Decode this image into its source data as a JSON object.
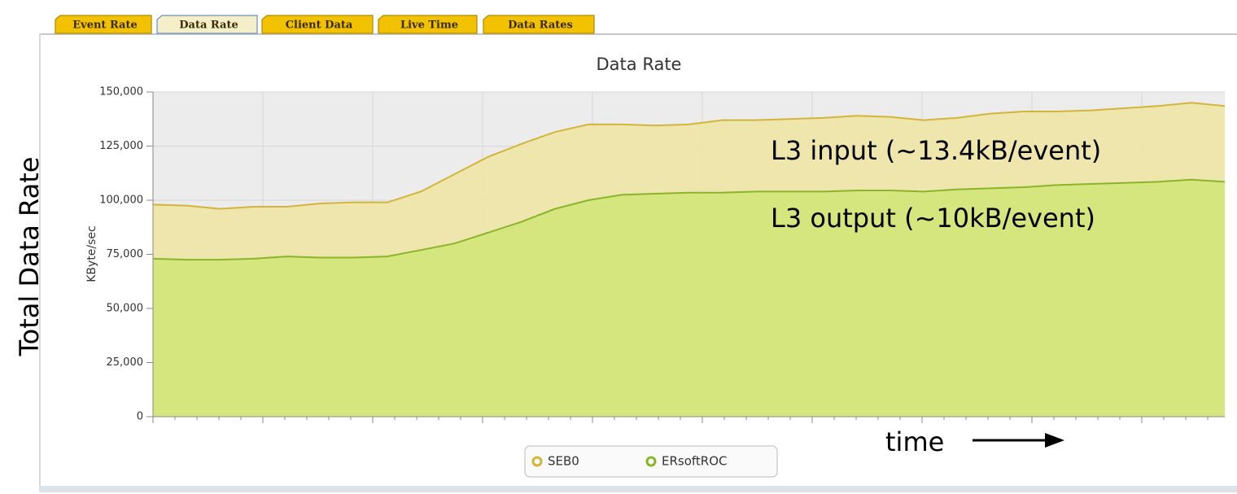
{
  "tabs": [
    "Event Rate",
    "Data Rate",
    "Client Data",
    "Live Time",
    "Data Rates"
  ],
  "side_label": "Total Data Rate",
  "chart_data": {
    "type": "area",
    "title": "Data Rate",
    "y_label": "KByte/sec",
    "categories": [
      null,
      null,
      null,
      null,
      null,
      null,
      null,
      null,
      null,
      null,
      null,
      null,
      null,
      null,
      null,
      null,
      null,
      null,
      null,
      null,
      null,
      null,
      null,
      null,
      null,
      null,
      null,
      null,
      null,
      null,
      null,
      null,
      null
    ],
    "series": [
      {
        "name": "SEB0",
        "color": "#d2b53a",
        "fill": "#efe6a6",
        "values": [
          98000,
          97500,
          96000,
          97000,
          97000,
          98500,
          99000,
          99000,
          104000,
          112000,
          120000,
          126000,
          131500,
          135000,
          135000,
          134500,
          135000,
          137000,
          137000,
          137500,
          138000,
          139000,
          138500,
          137000,
          138000,
          140000,
          141000,
          141000,
          141500,
          142500,
          143500,
          145000,
          143500
        ]
      },
      {
        "name": "ERsoftROC",
        "color": "#89b52a",
        "fill": "#d3e67a",
        "values": [
          73000,
          72500,
          72500,
          73000,
          74000,
          73500,
          73500,
          74000,
          77000,
          80000,
          85000,
          90000,
          96000,
          100000,
          102500,
          103000,
          103500,
          103500,
          104000,
          104000,
          104000,
          104500,
          104500,
          104000,
          105000,
          105500,
          106000,
          107000,
          107500,
          108000,
          108500,
          109500,
          108500
        ]
      }
    ],
    "ylim": [
      0,
      150000
    ],
    "yticks": [
      {
        "value": 0,
        "label": "0"
      },
      {
        "value": 25000,
        "label": "25,000"
      },
      {
        "value": 50000,
        "label": "50,000"
      },
      {
        "value": 75000,
        "label": "75,000"
      },
      {
        "value": 100000,
        "label": "100,000"
      },
      {
        "value": 125000,
        "label": "125,000"
      },
      {
        "value": 150000,
        "label": "150,000"
      }
    ],
    "grid": true,
    "legend": "bottom",
    "annotations": [
      "L3 input (~13.4kB/event)",
      "L3 output (~10kB/event)",
      "time"
    ]
  }
}
